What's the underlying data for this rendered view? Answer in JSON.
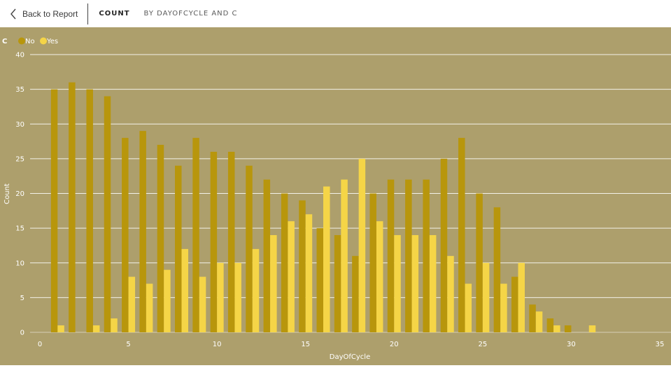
{
  "header": {
    "back_label": "Back to Report",
    "title": "COUNT",
    "subtitle": "BY DAYOFCYCLE AND C"
  },
  "colors": {
    "background": "#ad9f6c",
    "no": "#b8960c",
    "yes": "#f5d547",
    "grid": "#ffffff",
    "text": "#ffffff"
  },
  "chart_data": {
    "type": "bar",
    "legend": {
      "title": "C",
      "position": "top-left",
      "entries": [
        "No",
        "Yes"
      ]
    },
    "xlabel": "DayOfCycle",
    "ylabel": "Count",
    "xlim": [
      0,
      35
    ],
    "ylim": [
      0,
      40
    ],
    "xticks": [
      0,
      5,
      10,
      15,
      20,
      25,
      30,
      35
    ],
    "yticks": [
      0,
      5,
      10,
      15,
      20,
      25,
      30,
      35,
      40
    ],
    "grid": true,
    "x": [
      1,
      2,
      3,
      4,
      5,
      6,
      7,
      8,
      9,
      10,
      11,
      12,
      13,
      14,
      15,
      16,
      17,
      18,
      19,
      20,
      21,
      22,
      23,
      24,
      25,
      26,
      27,
      28,
      29,
      30,
      31
    ],
    "series": [
      {
        "name": "No",
        "values": [
          35,
          36,
          35,
          34,
          28,
          29,
          27,
          24,
          28,
          26,
          26,
          24,
          22,
          20,
          19,
          15,
          14,
          11,
          20,
          22,
          22,
          22,
          25,
          28,
          20,
          18,
          8,
          4,
          2,
          1,
          0
        ]
      },
      {
        "name": "Yes",
        "values": [
          1,
          0,
          1,
          2,
          8,
          7,
          9,
          12,
          8,
          10,
          10,
          12,
          14,
          16,
          17,
          21,
          22,
          25,
          16,
          14,
          14,
          14,
          11,
          7,
          10,
          7,
          10,
          3,
          1,
          0,
          1
        ]
      }
    ]
  }
}
